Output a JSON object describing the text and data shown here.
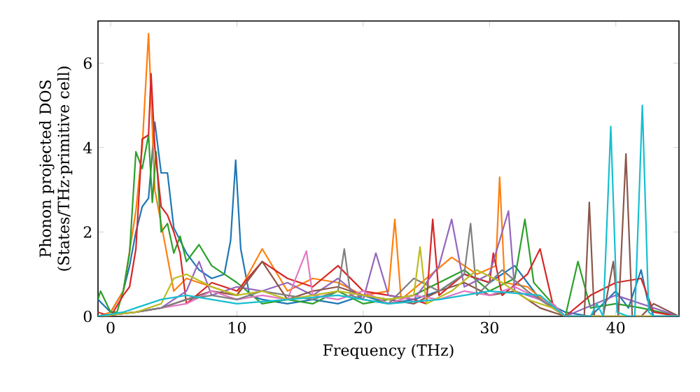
{
  "chart_data": {
    "type": "line",
    "xlabel": "Frequency (THz)",
    "ylabel": "Phonon projected DOS (States/THz·primitive cell)",
    "xlim": [
      -1,
      45
    ],
    "ylim": [
      0,
      7
    ],
    "xticks": [
      0,
      10,
      20,
      30,
      40
    ],
    "yticks": [
      0,
      2,
      4,
      6
    ],
    "grid": false,
    "marker": "none",
    "line_style": "solid",
    "series": [
      {
        "color": "#1f77b4",
        "x": [
          -1,
          0,
          1,
          1.5,
          2,
          2.5,
          3,
          3.5,
          4,
          4.5,
          5,
          6,
          7,
          8,
          9,
          9.5,
          9.9,
          10.3,
          11,
          12,
          14,
          16,
          18,
          20,
          22,
          24,
          26,
          28,
          30,
          32,
          34,
          36,
          38,
          39,
          40,
          41,
          42,
          42.5,
          43,
          44,
          45
        ],
        "values": [
          0.4,
          0.1,
          0.6,
          1.2,
          2.0,
          2.6,
          2.8,
          4.6,
          3.4,
          3.4,
          2.1,
          1.5,
          1.1,
          0.9,
          1.0,
          1.8,
          3.7,
          1.6,
          0.5,
          0.4,
          0.3,
          0.4,
          0.3,
          0.5,
          0.3,
          0.4,
          0.6,
          1.0,
          0.8,
          1.2,
          0.4,
          0.1,
          0.0,
          0.3,
          0.6,
          0.2,
          1.1,
          0.4,
          0.0,
          0.0,
          0.0
        ]
      },
      {
        "color": "#ff7f0e",
        "x": [
          -1,
          0,
          1,
          2,
          2.5,
          3,
          3.5,
          4,
          5,
          6,
          8,
          10,
          12,
          14,
          16,
          18,
          20,
          22,
          22.5,
          23,
          25,
          27,
          29,
          30.5,
          30.8,
          31.2,
          33,
          35,
          36
        ],
        "values": [
          0.0,
          0.1,
          0.6,
          2.5,
          4.0,
          6.7,
          3.0,
          2.2,
          0.6,
          0.9,
          0.7,
          0.5,
          1.6,
          0.6,
          0.9,
          0.8,
          0.5,
          0.6,
          2.3,
          0.4,
          0.9,
          1.4,
          1.0,
          1.2,
          3.3,
          0.8,
          0.7,
          0.2,
          0.0
        ]
      },
      {
        "color": "#2ca02c",
        "x": [
          -1,
          -0.8,
          0,
          0.5,
          1,
          1.5,
          2,
          2.5,
          3,
          3.3,
          3.6,
          4,
          4.5,
          5,
          5.5,
          6,
          7,
          8,
          9,
          10,
          12,
          14,
          16,
          18,
          20,
          22,
          24,
          26,
          28,
          30,
          32,
          32.8,
          33.5,
          35,
          36,
          37,
          38,
          40,
          42,
          45
        ],
        "values": [
          0.4,
          0.6,
          0.1,
          0.1,
          0.6,
          1.5,
          3.9,
          3.5,
          4.3,
          2.7,
          3.9,
          2.0,
          2.2,
          1.5,
          1.9,
          1.3,
          1.7,
          1.2,
          1.0,
          0.8,
          0.3,
          0.4,
          0.3,
          0.6,
          0.3,
          0.4,
          0.5,
          0.8,
          1.1,
          0.6,
          0.9,
          2.3,
          0.8,
          0.3,
          0.0,
          1.3,
          0.2,
          0.3,
          0.2,
          0.0
        ]
      },
      {
        "color": "#d62728",
        "x": [
          -1,
          0,
          1,
          1.5,
          2,
          2.5,
          3,
          3.2,
          3.5,
          4,
          4.5,
          5,
          5.5,
          6,
          8,
          10,
          12,
          14,
          16,
          18,
          20,
          22,
          24,
          25,
          25.5,
          26,
          28,
          30,
          30.3,
          31,
          33,
          34,
          35,
          36,
          38,
          40,
          42,
          42.5,
          43,
          45
        ],
        "values": [
          0.1,
          0.0,
          0.5,
          0.7,
          1.6,
          4.2,
          4.3,
          5.75,
          4.0,
          2.6,
          2.4,
          2.0,
          1.5,
          0.3,
          0.8,
          0.6,
          1.3,
          0.9,
          0.7,
          1.2,
          0.6,
          0.5,
          0.4,
          0.3,
          2.3,
          0.5,
          1.0,
          0.8,
          1.5,
          0.5,
          1.0,
          1.6,
          0.3,
          0.0,
          0.5,
          0.8,
          0.9,
          0.5,
          0.1,
          0.0
        ]
      },
      {
        "color": "#9467bd",
        "x": [
          -1,
          2,
          4,
          6,
          7,
          8,
          10,
          12,
          14,
          16,
          18,
          20,
          21,
          22,
          24,
          26,
          27,
          28,
          30,
          31.5,
          32,
          34,
          36,
          40,
          45
        ],
        "values": [
          0.0,
          0.1,
          0.2,
          0.6,
          1.3,
          0.5,
          0.7,
          0.6,
          0.8,
          0.5,
          0.9,
          0.4,
          1.5,
          0.5,
          0.4,
          1.2,
          2.3,
          0.7,
          1.0,
          2.5,
          0.6,
          0.4,
          0.0,
          0.5,
          0.0
        ]
      },
      {
        "color": "#8c564b",
        "x": [
          -1,
          2,
          4,
          6,
          8,
          10,
          12,
          14,
          16,
          18,
          20,
          22,
          24,
          26,
          28,
          30,
          32,
          34,
          36,
          37.5,
          37.9,
          38.3,
          39,
          39.8,
          40.2,
          40.8,
          41.3,
          42,
          43,
          45
        ],
        "values": [
          0.0,
          0.1,
          0.2,
          0.4,
          0.6,
          0.5,
          1.3,
          0.4,
          0.6,
          0.7,
          0.5,
          0.4,
          0.3,
          0.6,
          0.8,
          0.5,
          0.6,
          0.2,
          0.0,
          0.0,
          2.7,
          0.0,
          0.0,
          1.3,
          0.0,
          3.85,
          0.0,
          0.0,
          0.3,
          0.0
        ]
      },
      {
        "color": "#e377c2",
        "x": [
          -1,
          2,
          4,
          6,
          8,
          10,
          12,
          14,
          15.5,
          16,
          18,
          20,
          22,
          24,
          26,
          28,
          30,
          32,
          34,
          35,
          36,
          45
        ],
        "values": [
          0.0,
          0.1,
          0.2,
          0.3,
          0.6,
          0.4,
          0.5,
          0.4,
          1.55,
          0.5,
          0.4,
          0.6,
          0.3,
          0.5,
          0.4,
          0.6,
          0.5,
          0.7,
          0.4,
          0.3,
          0.0,
          0.0
        ]
      },
      {
        "color": "#7f7f7f",
        "x": [
          -1,
          2,
          4,
          6,
          8,
          10,
          12,
          14,
          16,
          18,
          18.5,
          19,
          20,
          22,
          24,
          26,
          28,
          28.5,
          29,
          31,
          33,
          35,
          36,
          45
        ],
        "values": [
          0.0,
          0.1,
          0.2,
          0.4,
          0.5,
          0.4,
          0.6,
          0.5,
          0.4,
          0.6,
          1.6,
          0.5,
          0.4,
          0.3,
          0.9,
          0.6,
          1.0,
          2.2,
          0.5,
          1.1,
          0.6,
          0.2,
          0.0,
          0.0
        ]
      },
      {
        "color": "#bcbd22",
        "x": [
          -1,
          2,
          4,
          5,
          6,
          8,
          10,
          12,
          14,
          16,
          18,
          20,
          22,
          24,
          24.5,
          25,
          27,
          29,
          31,
          33,
          35,
          36,
          45
        ],
        "values": [
          0.0,
          0.1,
          0.3,
          0.9,
          1.0,
          0.7,
          0.5,
          0.6,
          0.4,
          0.5,
          0.6,
          0.5,
          0.4,
          0.5,
          1.65,
          0.3,
          0.6,
          1.1,
          0.8,
          0.4,
          0.2,
          0.0,
          0.0
        ]
      },
      {
        "color": "#17becf",
        "x": [
          -1,
          1,
          2,
          3,
          4,
          6,
          8,
          10,
          14,
          18,
          22,
          26,
          30,
          34,
          36,
          37.5,
          38,
          38.5,
          39,
          39.6,
          40.1,
          41,
          41.5,
          42.1,
          42.6,
          43,
          45
        ],
        "values": [
          0.0,
          0.1,
          0.2,
          0.3,
          0.4,
          0.5,
          0.4,
          0.3,
          0.4,
          0.5,
          0.3,
          0.4,
          0.6,
          0.5,
          0.0,
          0.0,
          0.0,
          0.3,
          0.0,
          4.5,
          0.1,
          0.0,
          0.0,
          5.0,
          0.1,
          0.0,
          0.0
        ]
      }
    ]
  }
}
